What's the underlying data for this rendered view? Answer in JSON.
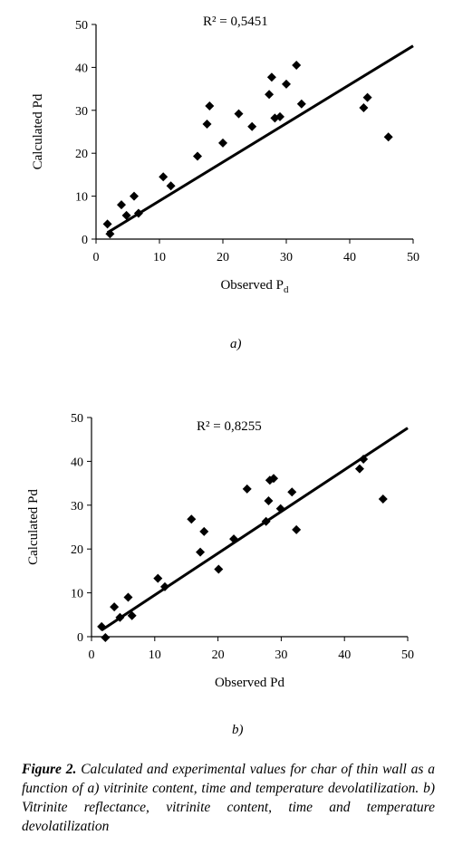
{
  "chart_data": [
    {
      "type": "scatter",
      "xlabel": "Observed",
      "xlabel_sub": "d",
      "xlabel_main": "Observed  P",
      "ylabel": "Calculated  Pd",
      "xlim": [
        0,
        50
      ],
      "ylim": [
        0,
        50
      ],
      "xticks": [
        0,
        10,
        20,
        30,
        40,
        50
      ],
      "yticks": [
        0,
        10,
        20,
        30,
        40,
        50
      ],
      "annotation": "R² = 0,5451",
      "points": [
        [
          1.8,
          3.5
        ],
        [
          2.2,
          1.2
        ],
        [
          4.0,
          8.0
        ],
        [
          4.8,
          5.5
        ],
        [
          6.0,
          10.0
        ],
        [
          6.7,
          6.0
        ],
        [
          10.6,
          14.5
        ],
        [
          11.8,
          12.4
        ],
        [
          16.0,
          19.3
        ],
        [
          17.5,
          26.8
        ],
        [
          17.9,
          31.0
        ],
        [
          20.0,
          22.4
        ],
        [
          22.5,
          29.2
        ],
        [
          24.6,
          26.2
        ],
        [
          27.3,
          33.7
        ],
        [
          27.7,
          37.7
        ],
        [
          28.2,
          28.2
        ],
        [
          29.0,
          28.5
        ],
        [
          30.0,
          36.1
        ],
        [
          31.6,
          40.5
        ],
        [
          32.4,
          31.5
        ],
        [
          42.2,
          30.6
        ],
        [
          42.8,
          33.0
        ],
        [
          46.1,
          23.8
        ]
      ],
      "trendline": [
        [
          1.8,
          1.5
        ],
        [
          50,
          45.0
        ]
      ]
    },
    {
      "type": "scatter",
      "xlabel": "Observed Pd",
      "ylabel": "Calculated Pd",
      "xlim": [
        0,
        50
      ],
      "ylim": [
        0,
        50
      ],
      "xticks": [
        0,
        10,
        20,
        30,
        40,
        50
      ],
      "yticks": [
        0,
        10,
        20,
        30,
        40,
        50
      ],
      "annotation": "R² = 0,8255",
      "points": [
        [
          1.6,
          2.3
        ],
        [
          2.2,
          -0.2
        ],
        [
          3.6,
          6.8
        ],
        [
          4.5,
          4.4
        ],
        [
          5.8,
          9.0
        ],
        [
          6.4,
          4.8
        ],
        [
          10.5,
          13.3
        ],
        [
          11.6,
          11.4
        ],
        [
          15.8,
          26.8
        ],
        [
          17.2,
          19.3
        ],
        [
          17.8,
          24.0
        ],
        [
          20.1,
          15.4
        ],
        [
          22.5,
          22.3
        ],
        [
          24.6,
          33.7
        ],
        [
          27.6,
          26.3
        ],
        [
          28.0,
          31.0
        ],
        [
          28.2,
          35.7
        ],
        [
          28.8,
          36.1
        ],
        [
          29.9,
          29.2
        ],
        [
          31.7,
          33.0
        ],
        [
          32.4,
          24.4
        ],
        [
          42.4,
          38.3
        ],
        [
          43.0,
          40.5
        ],
        [
          46.1,
          31.4
        ]
      ],
      "trendline": [
        [
          1.6,
          1.5
        ],
        [
          50,
          47.6
        ]
      ]
    }
  ],
  "panel_labels": [
    "a)",
    "b)"
  ],
  "caption": {
    "lead": "Figure 2.",
    "text": " Calculated and experimental values for char of thin wall  as a function of  a) vitrinite content, time and temperature devolatilization. b) Vitrinite reflectance, vitrinite content, time and temperature devolatilization"
  }
}
